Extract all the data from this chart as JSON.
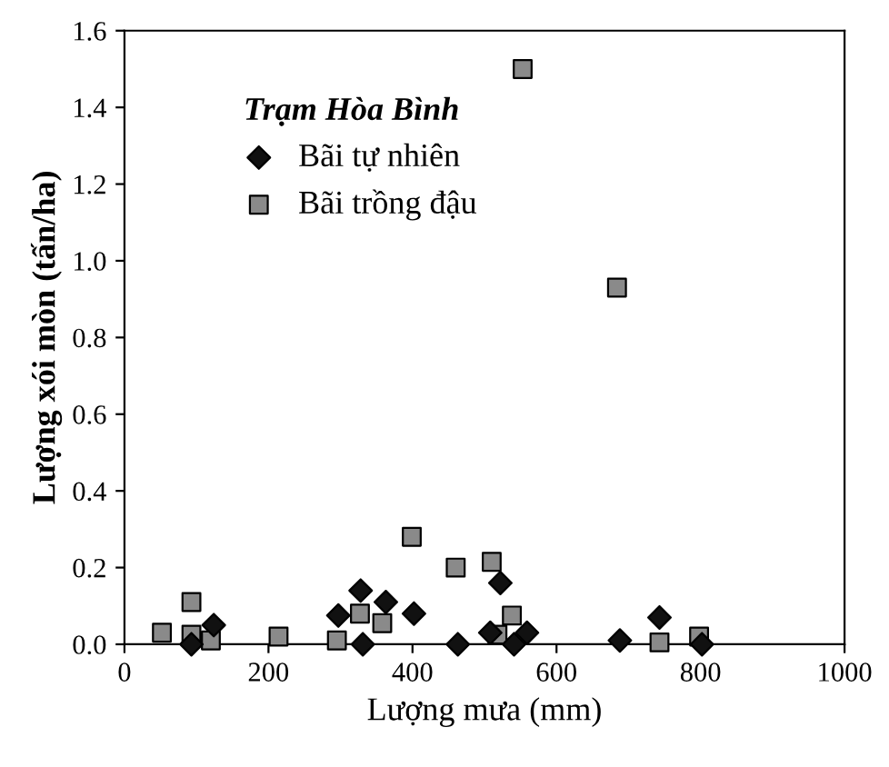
{
  "chart_data": {
    "type": "scatter",
    "xlabel": "Lượng mưa (mm)",
    "ylabel": "Lượng xói mòn (tấn/ha)",
    "legend_title": "Trạm Hòa Bình",
    "legend": "top left",
    "grid": false,
    "xlim": [
      0,
      1000
    ],
    "xticks": [
      0,
      200,
      400,
      600,
      800,
      1000
    ],
    "ylim": [
      0,
      1.6
    ],
    "yticks": [
      {
        "value": 0,
        "label": "0.0"
      },
      {
        "value": 0.2,
        "label": "0.2"
      },
      {
        "value": 0.4,
        "label": "0.4"
      },
      {
        "value": 0.6,
        "label": "0.6"
      },
      {
        "value": 0.8,
        "label": "0.8"
      },
      {
        "value": 1.0,
        "label": "1.0"
      },
      {
        "value": 1.2,
        "label": "1.2"
      },
      {
        "value": 1.4,
        "label": "1.4"
      },
      {
        "value": 1.6,
        "label": "1.6"
      }
    ],
    "series": [
      {
        "name": "Bãi tự nhiên",
        "color": "#111111",
        "marker": "diamond",
        "x": [
          93,
          124,
          297,
          328,
          331,
          363,
          402,
          463,
          508,
          522,
          541,
          559,
          688,
          743,
          802
        ],
        "values": [
          0,
          0.05,
          0.075,
          0.14,
          0,
          0.11,
          0.08,
          0,
          0.03,
          0.16,
          0,
          0.03,
          0.01,
          0.07,
          0
        ]
      },
      {
        "name": "Bãi trồng đậu",
        "color": "#8a8a8a",
        "marker": "square",
        "x": [
          52,
          93,
          93,
          120,
          214,
          295,
          327,
          358,
          399,
          460,
          510,
          518,
          538,
          553,
          684,
          743,
          798
        ],
        "values": [
          0.03,
          0.11,
          0.025,
          0.01,
          0.02,
          0.01,
          0.08,
          0.055,
          0.28,
          0.2,
          0.215,
          0.025,
          0.075,
          1.5,
          0.93,
          0.005,
          0.02
        ]
      }
    ]
  }
}
